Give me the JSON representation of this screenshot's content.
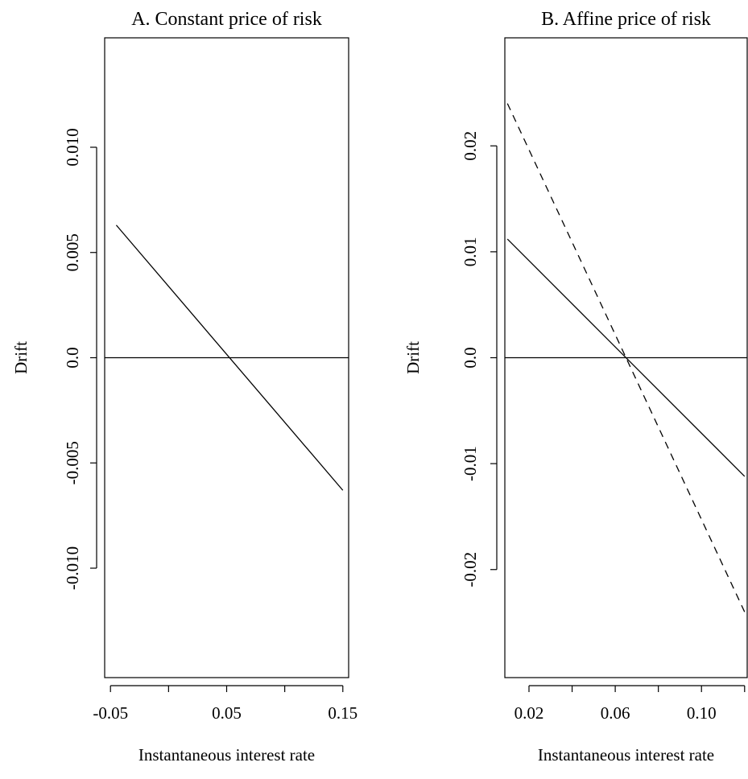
{
  "chart_data": [
    {
      "type": "line",
      "title": "A.  Constant price of risk",
      "xlabel": "Instantaneous interest rate",
      "ylabel": "Drift",
      "xlim": [
        -0.055,
        0.155
      ],
      "ylim": [
        -0.0152,
        0.0152
      ],
      "xticks": [
        -0.05,
        0.0,
        0.05,
        0.1,
        0.15
      ],
      "xtick_labels": [
        "-0.05",
        "",
        "0.05",
        "",
        "0.15"
      ],
      "yticks": [
        -0.01,
        -0.005,
        0.0,
        0.005,
        0.01
      ],
      "ytick_labels": [
        "-0.010",
        "-0.005",
        "0.0",
        "0.005",
        "0.010"
      ],
      "hline": 0.0,
      "grid": false,
      "series": [
        {
          "style": "solid",
          "x": [
            -0.045,
            0.15
          ],
          "y": [
            0.0063,
            -0.0063
          ]
        }
      ]
    },
    {
      "type": "line",
      "title": "B.  Affine price of risk",
      "xlabel": "Instantaneous interest rate",
      "ylabel": "Drift",
      "xlim": [
        0.0088,
        0.1212
      ],
      "ylim": [
        -0.0302,
        0.0302
      ],
      "xticks": [
        0.02,
        0.04,
        0.06,
        0.08,
        0.1,
        0.12
      ],
      "xtick_labels": [
        "0.02",
        "",
        "0.06",
        "",
        "0.10",
        ""
      ],
      "yticks": [
        -0.02,
        -0.01,
        0.0,
        0.01,
        0.02
      ],
      "ytick_labels": [
        "-0.02",
        "-0.01",
        "0.0",
        "0.01",
        "0.02"
      ],
      "hline": 0.0,
      "grid": false,
      "series": [
        {
          "style": "solid",
          "x": [
            0.01,
            0.12
          ],
          "y": [
            0.0112,
            -0.0112
          ]
        },
        {
          "style": "dashed",
          "x": [
            0.01,
            0.12
          ],
          "y": [
            0.024,
            -0.024
          ]
        }
      ]
    }
  ]
}
